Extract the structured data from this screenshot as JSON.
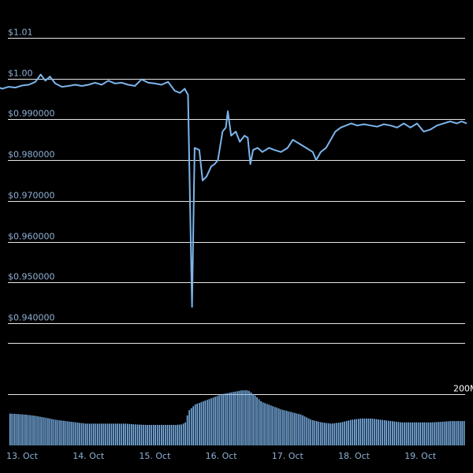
{
  "chart_data": {
    "type": "line",
    "title": "",
    "xlabel": "",
    "ylabel": "",
    "ylim": [
      0.935,
      1.015
    ],
    "y_tick_values": [
      1.01,
      1.0,
      0.99,
      0.98,
      0.97,
      0.96,
      0.95,
      0.94
    ],
    "y_tick_labels": [
      "$1.01",
      "$1.00",
      "$0.990000",
      "$0.980000",
      "$0.970000",
      "$0.960000",
      "$0.950000",
      "$0.940000"
    ],
    "x_range_days": [
      12.6,
      19.7
    ],
    "x_ticks": [
      {
        "day": 13,
        "label": "13. Oct"
      },
      {
        "day": 14,
        "label": "14. Oct"
      },
      {
        "day": 15,
        "label": "15. Oct"
      },
      {
        "day": 16,
        "label": "16. Oct"
      },
      {
        "day": 17,
        "label": "17. Oct"
      },
      {
        "day": 18,
        "label": "18. Oct"
      },
      {
        "day": 19,
        "label": "19. Oct"
      }
    ],
    "price_series": {
      "color": "#7cb5ec",
      "points": [
        [
          12.6,
          0.9982
        ],
        [
          12.7,
          0.9975
        ],
        [
          12.8,
          0.998
        ],
        [
          12.9,
          0.9978
        ],
        [
          13.0,
          0.9983
        ],
        [
          13.1,
          0.9985
        ],
        [
          13.2,
          0.9992
        ],
        [
          13.28,
          1.001
        ],
        [
          13.35,
          0.9995
        ],
        [
          13.42,
          1.0005
        ],
        [
          13.5,
          0.9988
        ],
        [
          13.6,
          0.998
        ],
        [
          13.7,
          0.9982
        ],
        [
          13.8,
          0.9985
        ],
        [
          13.9,
          0.9982
        ],
        [
          14.0,
          0.9985
        ],
        [
          14.1,
          0.999
        ],
        [
          14.2,
          0.9985
        ],
        [
          14.3,
          0.9995
        ],
        [
          14.4,
          0.9988
        ],
        [
          14.5,
          0.999
        ],
        [
          14.6,
          0.9985
        ],
        [
          14.7,
          0.9982
        ],
        [
          14.8,
          0.9998
        ],
        [
          14.9,
          0.999
        ],
        [
          15.0,
          0.9988
        ],
        [
          15.1,
          0.9985
        ],
        [
          15.2,
          0.9992
        ],
        [
          15.3,
          0.997
        ],
        [
          15.38,
          0.9965
        ],
        [
          15.45,
          0.9975
        ],
        [
          15.5,
          0.996
        ],
        [
          15.53,
          0.97
        ],
        [
          15.56,
          0.944
        ],
        [
          15.6,
          0.983
        ],
        [
          15.67,
          0.9825
        ],
        [
          15.72,
          0.975
        ],
        [
          15.78,
          0.976
        ],
        [
          15.85,
          0.9785
        ],
        [
          15.9,
          0.979
        ],
        [
          15.95,
          0.98
        ],
        [
          16.02,
          0.987
        ],
        [
          16.07,
          0.988
        ],
        [
          16.1,
          0.992
        ],
        [
          16.15,
          0.986
        ],
        [
          16.22,
          0.987
        ],
        [
          16.28,
          0.9845
        ],
        [
          16.35,
          0.986
        ],
        [
          16.4,
          0.9855
        ],
        [
          16.44,
          0.979
        ],
        [
          16.48,
          0.9825
        ],
        [
          16.55,
          0.983
        ],
        [
          16.62,
          0.982
        ],
        [
          16.72,
          0.983
        ],
        [
          16.8,
          0.9825
        ],
        [
          16.9,
          0.982
        ],
        [
          17.0,
          0.983
        ],
        [
          17.08,
          0.985
        ],
        [
          17.18,
          0.984
        ],
        [
          17.28,
          0.983
        ],
        [
          17.38,
          0.982
        ],
        [
          17.43,
          0.98
        ],
        [
          17.5,
          0.982
        ],
        [
          17.58,
          0.983
        ],
        [
          17.65,
          0.985
        ],
        [
          17.72,
          0.987
        ],
        [
          17.8,
          0.988
        ],
        [
          17.88,
          0.9885
        ],
        [
          17.96,
          0.989
        ],
        [
          18.05,
          0.9885
        ],
        [
          18.15,
          0.9888
        ],
        [
          18.25,
          0.9885
        ],
        [
          18.35,
          0.9882
        ],
        [
          18.45,
          0.9888
        ],
        [
          18.55,
          0.9885
        ],
        [
          18.65,
          0.988
        ],
        [
          18.75,
          0.989
        ],
        [
          18.85,
          0.988
        ],
        [
          18.95,
          0.989
        ],
        [
          19.05,
          0.987
        ],
        [
          19.15,
          0.9875
        ],
        [
          19.25,
          0.9885
        ],
        [
          19.35,
          0.989
        ],
        [
          19.45,
          0.9895
        ],
        [
          19.55,
          0.989
        ],
        [
          19.62,
          0.9895
        ],
        [
          19.7,
          0.989
        ]
      ]
    },
    "volume_axis": {
      "max": 200,
      "unit": "M",
      "tick_label": "200M"
    },
    "volume_series": {
      "color": "#7cb5ec",
      "points": [
        [
          12.6,
          125
        ],
        [
          12.75,
          125
        ],
        [
          12.9,
          123
        ],
        [
          13.05,
          120
        ],
        [
          13.2,
          115
        ],
        [
          13.35,
          108
        ],
        [
          13.5,
          100
        ],
        [
          13.65,
          95
        ],
        [
          13.8,
          90
        ],
        [
          13.95,
          85
        ],
        [
          14.1,
          85
        ],
        [
          14.25,
          85
        ],
        [
          14.4,
          85
        ],
        [
          14.55,
          85
        ],
        [
          14.7,
          82
        ],
        [
          14.85,
          80
        ],
        [
          15.0,
          80
        ],
        [
          15.15,
          80
        ],
        [
          15.3,
          80
        ],
        [
          15.4,
          82
        ],
        [
          15.45,
          90
        ],
        [
          15.5,
          135
        ],
        [
          15.6,
          160
        ],
        [
          15.7,
          170
        ],
        [
          15.8,
          180
        ],
        [
          15.9,
          190
        ],
        [
          16.0,
          200
        ],
        [
          16.1,
          205
        ],
        [
          16.2,
          210
        ],
        [
          16.3,
          215
        ],
        [
          16.4,
          215
        ],
        [
          16.5,
          195
        ],
        [
          16.6,
          170
        ],
        [
          16.75,
          155
        ],
        [
          16.9,
          140
        ],
        [
          17.05,
          130
        ],
        [
          17.2,
          120
        ],
        [
          17.35,
          100
        ],
        [
          17.5,
          90
        ],
        [
          17.65,
          85
        ],
        [
          17.8,
          90
        ],
        [
          17.95,
          100
        ],
        [
          18.1,
          105
        ],
        [
          18.25,
          105
        ],
        [
          18.4,
          100
        ],
        [
          18.55,
          95
        ],
        [
          18.7,
          90
        ],
        [
          18.85,
          90
        ],
        [
          19.0,
          90
        ],
        [
          19.15,
          90
        ],
        [
          19.3,
          92
        ],
        [
          19.45,
          95
        ],
        [
          19.6,
          95
        ],
        [
          19.7,
          95
        ]
      ]
    },
    "grid": true,
    "legend": "none"
  }
}
